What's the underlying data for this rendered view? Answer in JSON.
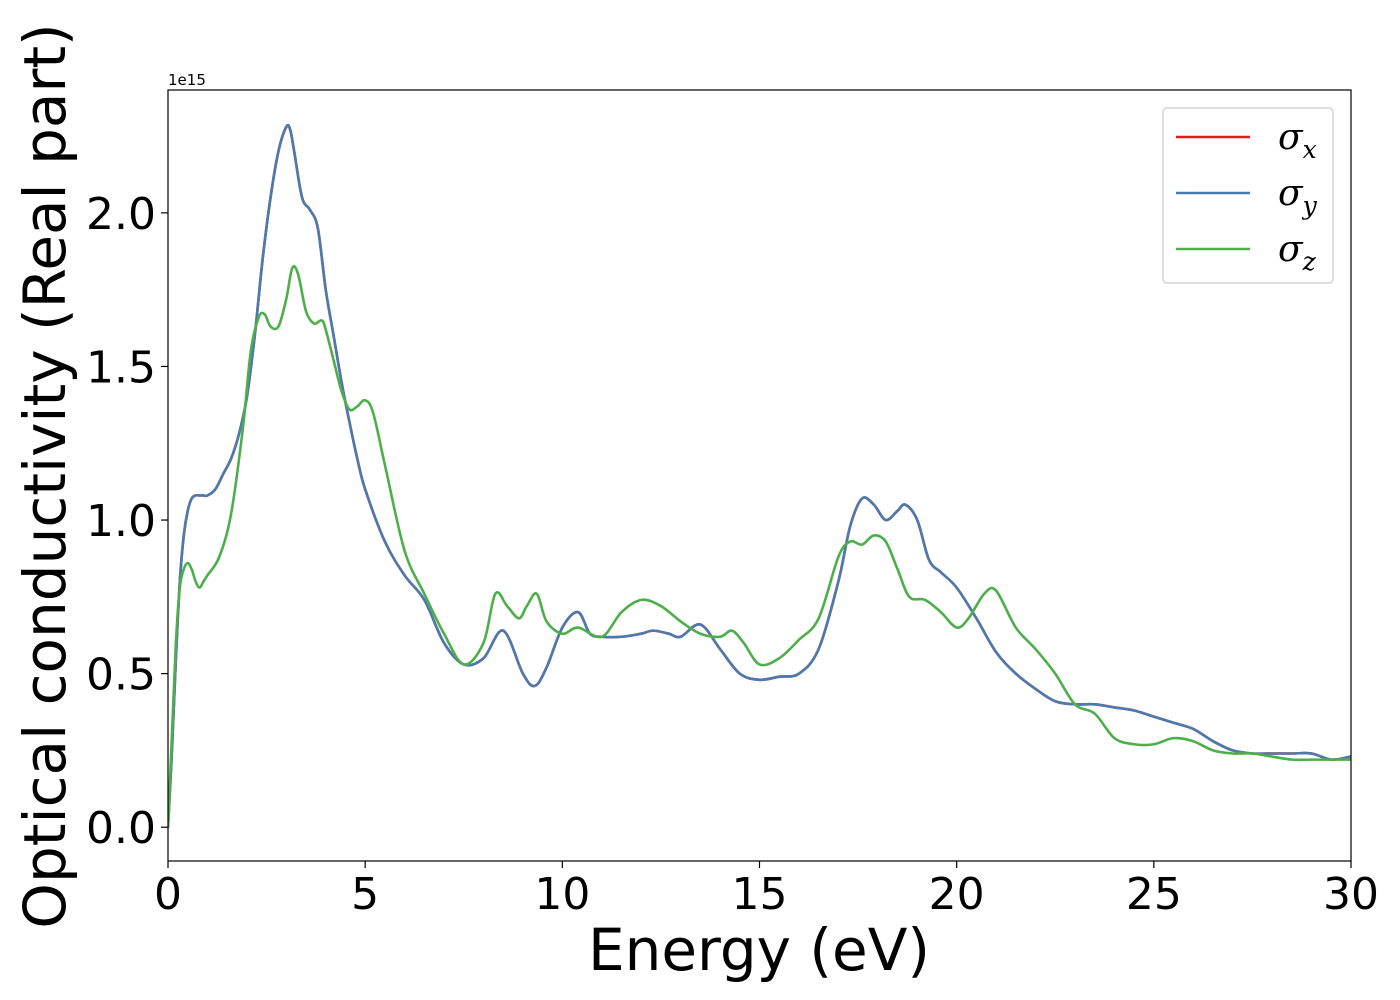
{
  "chart_data": {
    "type": "line",
    "xlabel": "Energy (eV)",
    "ylabel": "Optical conductivity (Real part)",
    "offset_label": "1e15",
    "xlim": [
      0,
      30
    ],
    "ylim": [
      -0.11,
      2.4
    ],
    "xticks": [
      0,
      5,
      10,
      15,
      20,
      25,
      30
    ],
    "xtick_labels": [
      "0",
      "5",
      "10",
      "15",
      "20",
      "25",
      "30"
    ],
    "yticks": [
      0.0,
      0.5,
      1.0,
      1.5,
      2.0
    ],
    "ytick_labels": [
      "0.0",
      "0.5",
      "1.0",
      "1.5",
      "2.0"
    ],
    "grid": false,
    "legend_position": "top-right",
    "series": [
      {
        "name": "σx",
        "symbol": "σ",
        "subscript": "x",
        "color": "#e41a1c",
        "x": [
          0,
          0.1,
          0.2,
          0.3,
          0.4,
          0.5,
          0.6,
          0.7,
          0.8,
          0.9,
          1.0,
          1.2,
          1.4,
          1.6,
          1.8,
          2.0,
          2.2,
          2.4,
          2.6,
          2.8,
          3.0,
          3.1,
          3.2,
          3.4,
          3.6,
          3.8,
          4.0,
          4.2,
          4.4,
          4.6,
          4.8,
          5.0,
          5.5,
          6.0,
          6.5,
          7.0,
          7.5,
          8.0,
          8.5,
          9.0,
          9.3,
          9.6,
          10.0,
          10.4,
          10.7,
          11.0,
          11.5,
          12.0,
          12.3,
          12.7,
          13.0,
          13.5,
          14.0,
          14.5,
          15.0,
          15.5,
          16.0,
          16.5,
          17.0,
          17.3,
          17.6,
          17.9,
          18.2,
          18.5,
          18.7,
          19.0,
          19.3,
          19.6,
          20.0,
          20.5,
          21.0,
          21.5,
          22.0,
          22.5,
          23.0,
          23.5,
          24.0,
          24.5,
          25.0,
          25.5,
          26.0,
          26.5,
          27.0,
          27.5,
          28.0,
          28.5,
          29.0,
          29.5,
          30.0
        ],
        "y": [
          0.0,
          0.25,
          0.55,
          0.8,
          0.95,
          1.03,
          1.07,
          1.08,
          1.08,
          1.08,
          1.08,
          1.1,
          1.15,
          1.2,
          1.28,
          1.4,
          1.6,
          1.85,
          2.05,
          2.2,
          2.28,
          2.27,
          2.2,
          2.05,
          2.01,
          1.95,
          1.75,
          1.6,
          1.45,
          1.32,
          1.2,
          1.1,
          0.93,
          0.82,
          0.74,
          0.6,
          0.53,
          0.55,
          0.64,
          0.5,
          0.46,
          0.52,
          0.65,
          0.7,
          0.63,
          0.62,
          0.62,
          0.63,
          0.64,
          0.63,
          0.62,
          0.66,
          0.58,
          0.5,
          0.48,
          0.49,
          0.5,
          0.58,
          0.8,
          0.98,
          1.07,
          1.05,
          1.0,
          1.03,
          1.05,
          1.0,
          0.87,
          0.83,
          0.78,
          0.68,
          0.57,
          0.5,
          0.45,
          0.41,
          0.4,
          0.4,
          0.39,
          0.38,
          0.36,
          0.34,
          0.32,
          0.28,
          0.25,
          0.24,
          0.24,
          0.24,
          0.24,
          0.22,
          0.23
        ]
      },
      {
        "name": "σy",
        "symbol": "σ",
        "subscript": "y",
        "color": "#4a7bb0",
        "x": [
          0,
          0.1,
          0.2,
          0.3,
          0.4,
          0.5,
          0.6,
          0.7,
          0.8,
          0.9,
          1.0,
          1.2,
          1.4,
          1.6,
          1.8,
          2.0,
          2.2,
          2.4,
          2.6,
          2.8,
          3.0,
          3.1,
          3.2,
          3.4,
          3.6,
          3.8,
          4.0,
          4.2,
          4.4,
          4.6,
          4.8,
          5.0,
          5.5,
          6.0,
          6.5,
          7.0,
          7.5,
          8.0,
          8.5,
          9.0,
          9.3,
          9.6,
          10.0,
          10.4,
          10.7,
          11.0,
          11.5,
          12.0,
          12.3,
          12.7,
          13.0,
          13.5,
          14.0,
          14.5,
          15.0,
          15.5,
          16.0,
          16.5,
          17.0,
          17.3,
          17.6,
          17.9,
          18.2,
          18.5,
          18.7,
          19.0,
          19.3,
          19.6,
          20.0,
          20.5,
          21.0,
          21.5,
          22.0,
          22.5,
          23.0,
          23.5,
          24.0,
          24.5,
          25.0,
          25.5,
          26.0,
          26.5,
          27.0,
          27.5,
          28.0,
          28.5,
          29.0,
          29.5,
          30.0
        ],
        "y": [
          0.0,
          0.25,
          0.55,
          0.8,
          0.95,
          1.03,
          1.07,
          1.08,
          1.08,
          1.08,
          1.08,
          1.1,
          1.15,
          1.2,
          1.28,
          1.4,
          1.6,
          1.85,
          2.05,
          2.2,
          2.28,
          2.27,
          2.2,
          2.05,
          2.01,
          1.95,
          1.75,
          1.6,
          1.45,
          1.32,
          1.2,
          1.1,
          0.93,
          0.82,
          0.74,
          0.6,
          0.53,
          0.55,
          0.64,
          0.5,
          0.46,
          0.52,
          0.65,
          0.7,
          0.63,
          0.62,
          0.62,
          0.63,
          0.64,
          0.63,
          0.62,
          0.66,
          0.58,
          0.5,
          0.48,
          0.49,
          0.5,
          0.58,
          0.8,
          0.98,
          1.07,
          1.05,
          1.0,
          1.03,
          1.05,
          1.0,
          0.87,
          0.83,
          0.78,
          0.68,
          0.57,
          0.5,
          0.45,
          0.41,
          0.4,
          0.4,
          0.39,
          0.38,
          0.36,
          0.34,
          0.32,
          0.28,
          0.25,
          0.24,
          0.24,
          0.24,
          0.24,
          0.22,
          0.23
        ]
      },
      {
        "name": "σz",
        "symbol": "σ",
        "subscript": "z",
        "color": "#4daf4a",
        "x": [
          0,
          0.1,
          0.2,
          0.3,
          0.4,
          0.5,
          0.6,
          0.7,
          0.8,
          0.9,
          1.0,
          1.3,
          1.6,
          1.9,
          2.1,
          2.3,
          2.45,
          2.6,
          2.8,
          3.0,
          3.15,
          3.3,
          3.5,
          3.7,
          3.9,
          4.0,
          4.2,
          4.4,
          4.6,
          4.8,
          5.0,
          5.2,
          5.5,
          6.0,
          6.5,
          7.0,
          7.5,
          8.0,
          8.3,
          8.6,
          8.9,
          9.1,
          9.35,
          9.6,
          10.0,
          10.4,
          11.0,
          11.5,
          12.0,
          12.5,
          13.0,
          13.5,
          14.0,
          14.3,
          14.6,
          15.0,
          15.5,
          16.0,
          16.5,
          17.0,
          17.3,
          17.6,
          17.9,
          18.2,
          18.5,
          18.8,
          19.2,
          19.6,
          20.0,
          20.3,
          20.7,
          21.0,
          21.5,
          22.0,
          22.5,
          23.0,
          23.5,
          24.0,
          24.5,
          25.0,
          25.5,
          26.0,
          26.5,
          27.0,
          27.5,
          28.0,
          28.5,
          29.0,
          29.5,
          30.0
        ],
        "y": [
          0.0,
          0.3,
          0.6,
          0.78,
          0.84,
          0.86,
          0.84,
          0.8,
          0.78,
          0.8,
          0.82,
          0.88,
          1.02,
          1.3,
          1.55,
          1.66,
          1.67,
          1.63,
          1.63,
          1.72,
          1.82,
          1.8,
          1.68,
          1.64,
          1.65,
          1.62,
          1.52,
          1.42,
          1.36,
          1.37,
          1.39,
          1.35,
          1.18,
          0.9,
          0.76,
          0.63,
          0.53,
          0.6,
          0.76,
          0.72,
          0.68,
          0.72,
          0.76,
          0.67,
          0.63,
          0.65,
          0.62,
          0.7,
          0.74,
          0.72,
          0.67,
          0.63,
          0.62,
          0.64,
          0.6,
          0.53,
          0.55,
          0.61,
          0.68,
          0.88,
          0.93,
          0.92,
          0.95,
          0.93,
          0.84,
          0.75,
          0.74,
          0.7,
          0.65,
          0.68,
          0.76,
          0.77,
          0.65,
          0.58,
          0.5,
          0.4,
          0.37,
          0.29,
          0.27,
          0.27,
          0.29,
          0.28,
          0.25,
          0.24,
          0.24,
          0.23,
          0.22,
          0.22,
          0.22,
          0.22
        ]
      }
    ]
  }
}
